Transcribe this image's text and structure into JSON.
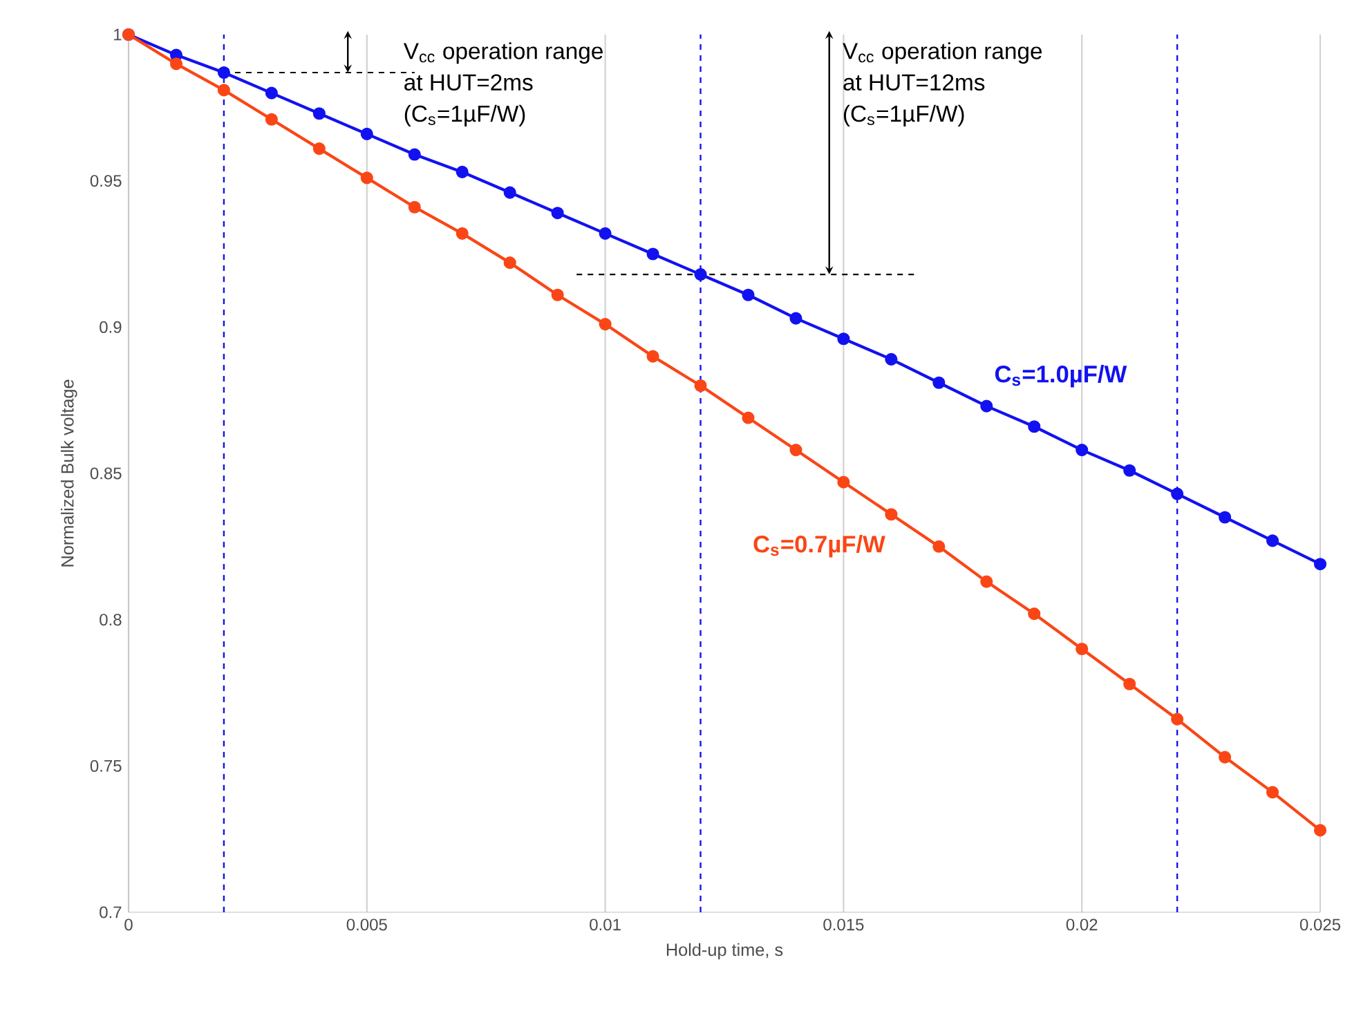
{
  "chart_data": {
    "type": "line",
    "xlabel": "Hold-up time, s",
    "ylabel": "Normalized Bulk voltage",
    "xlim": [
      0,
      0.025
    ],
    "xticks": [
      0,
      0.005,
      0.01,
      0.015,
      0.02,
      0.025
    ],
    "ylim": [
      0.7,
      1
    ],
    "yticks": [
      0.7,
      0.75,
      0.8,
      0.85,
      0.9,
      0.95,
      1
    ],
    "grid": "x",
    "marker": "circle",
    "line_style": "solid",
    "x": [
      0,
      0.001,
      0.002,
      0.003,
      0.004,
      0.005,
      0.006,
      0.007,
      0.008,
      0.009,
      0.01,
      0.011,
      0.012,
      0.013,
      0.014,
      0.015,
      0.016,
      0.017,
      0.018,
      0.019,
      0.02,
      0.021,
      0.022,
      0.023,
      0.024,
      0.025
    ],
    "series": [
      {
        "name": "**C$_{s}$=1.0µF/W**",
        "color": "#1212f0",
        "values": [
          1,
          0.993,
          0.987,
          0.98,
          0.973,
          0.966,
          0.959,
          0.953,
          0.946,
          0.939,
          0.932,
          0.925,
          0.918,
          0.911,
          0.903,
          0.896,
          0.889,
          0.881,
          0.873,
          0.866,
          0.858,
          0.851,
          0.843,
          0.835,
          0.827,
          0.819
        ]
      },
      {
        "name": "**C$_{s}$=0.7µF/W**",
        "color": "#fa4616",
        "values": [
          1,
          0.99,
          0.981,
          0.971,
          0.961,
          0.951,
          0.941,
          0.932,
          0.922,
          0.911,
          0.901,
          0.89,
          0.88,
          0.869,
          0.858,
          0.847,
          0.836,
          0.825,
          0.813,
          0.802,
          0.79,
          0.778,
          0.766,
          0.753,
          0.741,
          0.728
        ]
      },
      {
        "type": "line",
        "color": "#000000",
        "line_style": "dashed",
        "marker": "none",
        "x": [
          0.002,
          0.006
        ],
        "values": [
          0.987,
          0.987
        ]
      },
      {
        "type": "line",
        "color": "#000000",
        "line_style": "dashed",
        "marker": "none",
        "x": [
          0.0094,
          0.0165
        ],
        "values": [
          0.918,
          0.918
        ]
      }
    ],
    "ref_lines": [
      {
        "axis": "x",
        "value": 0.002,
        "color": "#1212f0",
        "line_style": "dashed"
      },
      {
        "axis": "x",
        "value": 0.012,
        "color": "#1212f0",
        "line_style": "dashed"
      },
      {
        "axis": "x",
        "value": 0.022,
        "color": "#1212f0",
        "line_style": "dashed"
      }
    ],
    "annotations": [
      {
        "text": "V$_{cc}$ operation range at HUT=2ms (C$_{s}$=1µF/W)",
        "x": 0.0046,
        "y": 0.987
      },
      {
        "text": "V$_{cc}$ operation range at HUT=12ms (C$_{s}$=1µF/W)",
        "x": 0.0147,
        "y": 0.918
      }
    ]
  }
}
